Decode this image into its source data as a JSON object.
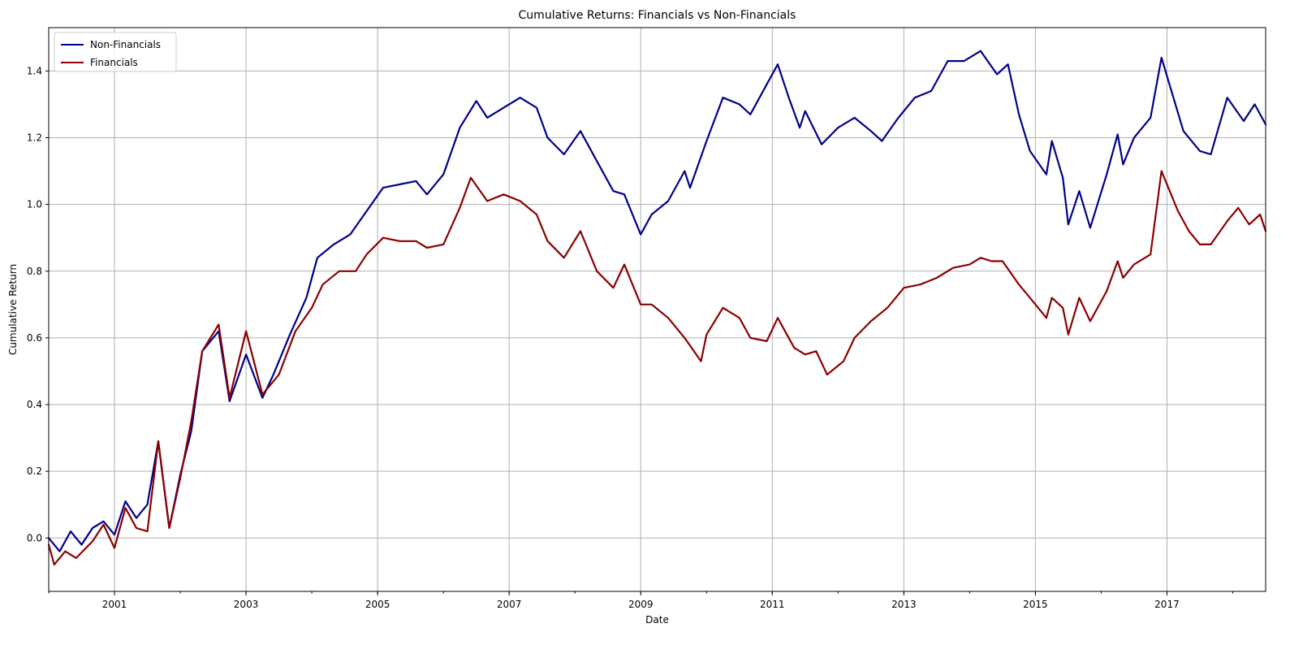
{
  "chart_data": {
    "type": "line",
    "title": "Cumulative Returns: Financials vs Non-Financials",
    "xlabel": "Date",
    "ylabel": "Cumulative Return",
    "xlim": [
      "2000-01-01",
      "2018-07-01"
    ],
    "ylim": [
      -0.16,
      1.53
    ],
    "x_ticks": [
      "2001",
      "2003",
      "2005",
      "2007",
      "2009",
      "2011",
      "2013",
      "2015",
      "2017"
    ],
    "y_ticks": [
      "0.0",
      "0.2",
      "0.4",
      "0.6",
      "0.8",
      "1.0",
      "1.2",
      "1.4"
    ],
    "grid": true,
    "legend_position": "upper-left",
    "series": [
      {
        "name": "Non-Financials",
        "color": "#00008b",
        "points": [
          [
            "2000-01",
            0.0
          ],
          [
            "2000-03",
            -0.04
          ],
          [
            "2000-05",
            0.02
          ],
          [
            "2000-07",
            -0.02
          ],
          [
            "2000-09",
            0.03
          ],
          [
            "2000-11",
            0.05
          ],
          [
            "2001-01",
            0.01
          ],
          [
            "2001-03",
            0.11
          ],
          [
            "2001-05",
            0.06
          ],
          [
            "2001-07",
            0.1
          ],
          [
            "2001-09",
            0.29
          ],
          [
            "2001-11",
            0.03
          ],
          [
            "2002-01",
            0.19
          ],
          [
            "2002-03",
            0.32
          ],
          [
            "2002-05",
            0.56
          ],
          [
            "2002-08",
            0.62
          ],
          [
            "2002-10",
            0.41
          ],
          [
            "2003-01",
            0.55
          ],
          [
            "2003-04",
            0.42
          ],
          [
            "2003-06",
            0.49
          ],
          [
            "2003-09",
            0.61
          ],
          [
            "2003-12",
            0.72
          ],
          [
            "2004-02",
            0.84
          ],
          [
            "2004-05",
            0.88
          ],
          [
            "2004-08",
            0.91
          ],
          [
            "2004-11",
            0.98
          ],
          [
            "2005-02",
            1.05
          ],
          [
            "2005-05",
            1.06
          ],
          [
            "2005-08",
            1.07
          ],
          [
            "2005-10",
            1.03
          ],
          [
            "2006-01",
            1.09
          ],
          [
            "2006-04",
            1.23
          ],
          [
            "2006-07",
            1.31
          ],
          [
            "2006-09",
            1.26
          ],
          [
            "2006-12",
            1.29
          ],
          [
            "2007-03",
            1.32
          ],
          [
            "2007-06",
            1.29
          ],
          [
            "2007-08",
            1.2
          ],
          [
            "2007-11",
            1.15
          ],
          [
            "2008-02",
            1.22
          ],
          [
            "2008-05",
            1.13
          ],
          [
            "2008-08",
            1.04
          ],
          [
            "2008-10",
            1.03
          ],
          [
            "2009-01",
            0.91
          ],
          [
            "2009-03",
            0.97
          ],
          [
            "2009-06",
            1.01
          ],
          [
            "2009-09",
            1.1
          ],
          [
            "2009-10",
            1.05
          ],
          [
            "2010-01",
            1.19
          ],
          [
            "2010-04",
            1.32
          ],
          [
            "2010-07",
            1.3
          ],
          [
            "2010-09",
            1.27
          ],
          [
            "2010-12",
            1.36
          ],
          [
            "2011-02",
            1.42
          ],
          [
            "2011-04",
            1.32
          ],
          [
            "2011-06",
            1.23
          ],
          [
            "2011-07",
            1.28
          ],
          [
            "2011-10",
            1.18
          ],
          [
            "2012-01",
            1.23
          ],
          [
            "2012-04",
            1.26
          ],
          [
            "2012-07",
            1.22
          ],
          [
            "2012-09",
            1.19
          ],
          [
            "2012-12",
            1.26
          ],
          [
            "2013-03",
            1.32
          ],
          [
            "2013-06",
            1.34
          ],
          [
            "2013-09",
            1.43
          ],
          [
            "2013-12",
            1.43
          ],
          [
            "2014-03",
            1.46
          ],
          [
            "2014-06",
            1.39
          ],
          [
            "2014-08",
            1.42
          ],
          [
            "2014-10",
            1.27
          ],
          [
            "2014-12",
            1.16
          ],
          [
            "2015-03",
            1.09
          ],
          [
            "2015-04",
            1.19
          ],
          [
            "2015-06",
            1.08
          ],
          [
            "2015-07",
            0.94
          ],
          [
            "2015-09",
            1.04
          ],
          [
            "2015-11",
            0.93
          ],
          [
            "2016-02",
            1.09
          ],
          [
            "2016-04",
            1.21
          ],
          [
            "2016-05",
            1.12
          ],
          [
            "2016-07",
            1.2
          ],
          [
            "2016-10",
            1.26
          ],
          [
            "2016-12",
            1.44
          ],
          [
            "2017-02",
            1.33
          ],
          [
            "2017-04",
            1.22
          ],
          [
            "2017-07",
            1.16
          ],
          [
            "2017-09",
            1.15
          ],
          [
            "2017-12",
            1.32
          ],
          [
            "2018-03",
            1.25
          ],
          [
            "2018-05",
            1.3
          ],
          [
            "2018-07",
            1.24
          ]
        ]
      },
      {
        "name": "Financials",
        "color": "#8b0000",
        "points": [
          [
            "2000-01",
            -0.02
          ],
          [
            "2000-02",
            -0.08
          ],
          [
            "2000-04",
            -0.04
          ],
          [
            "2000-06",
            -0.06
          ],
          [
            "2000-09",
            -0.01
          ],
          [
            "2000-11",
            0.04
          ],
          [
            "2001-01",
            -0.03
          ],
          [
            "2001-03",
            0.09
          ],
          [
            "2001-05",
            0.03
          ],
          [
            "2001-07",
            0.02
          ],
          [
            "2001-09",
            0.29
          ],
          [
            "2001-11",
            0.03
          ],
          [
            "2002-01",
            0.18
          ],
          [
            "2002-03",
            0.35
          ],
          [
            "2002-05",
            0.56
          ],
          [
            "2002-08",
            0.64
          ],
          [
            "2002-10",
            0.42
          ],
          [
            "2003-01",
            0.62
          ],
          [
            "2003-04",
            0.43
          ],
          [
            "2003-07",
            0.49
          ],
          [
            "2003-10",
            0.62
          ],
          [
            "2004-01",
            0.69
          ],
          [
            "2004-03",
            0.76
          ],
          [
            "2004-06",
            0.8
          ],
          [
            "2004-09",
            0.8
          ],
          [
            "2004-11",
            0.85
          ],
          [
            "2005-02",
            0.9
          ],
          [
            "2005-05",
            0.89
          ],
          [
            "2005-08",
            0.89
          ],
          [
            "2005-10",
            0.87
          ],
          [
            "2006-01",
            0.88
          ],
          [
            "2006-04",
            0.99
          ],
          [
            "2006-06",
            1.08
          ],
          [
            "2006-09",
            1.01
          ],
          [
            "2006-12",
            1.03
          ],
          [
            "2007-03",
            1.01
          ],
          [
            "2007-06",
            0.97
          ],
          [
            "2007-08",
            0.89
          ],
          [
            "2007-11",
            0.84
          ],
          [
            "2008-02",
            0.92
          ],
          [
            "2008-05",
            0.8
          ],
          [
            "2008-08",
            0.75
          ],
          [
            "2008-10",
            0.82
          ],
          [
            "2009-01",
            0.7
          ],
          [
            "2009-03",
            0.7
          ],
          [
            "2009-06",
            0.66
          ],
          [
            "2009-09",
            0.6
          ],
          [
            "2009-12",
            0.53
          ],
          [
            "2010-01",
            0.61
          ],
          [
            "2010-04",
            0.69
          ],
          [
            "2010-07",
            0.66
          ],
          [
            "2010-09",
            0.6
          ],
          [
            "2010-12",
            0.59
          ],
          [
            "2011-02",
            0.66
          ],
          [
            "2011-05",
            0.57
          ],
          [
            "2011-07",
            0.55
          ],
          [
            "2011-09",
            0.56
          ],
          [
            "2011-11",
            0.49
          ],
          [
            "2012-02",
            0.53
          ],
          [
            "2012-04",
            0.6
          ],
          [
            "2012-07",
            0.65
          ],
          [
            "2012-10",
            0.69
          ],
          [
            "2013-01",
            0.75
          ],
          [
            "2013-04",
            0.76
          ],
          [
            "2013-07",
            0.78
          ],
          [
            "2013-10",
            0.81
          ],
          [
            "2014-01",
            0.82
          ],
          [
            "2014-03",
            0.84
          ],
          [
            "2014-05",
            0.83
          ],
          [
            "2014-07",
            0.83
          ],
          [
            "2014-10",
            0.76
          ],
          [
            "2014-12",
            0.72
          ],
          [
            "2015-03",
            0.66
          ],
          [
            "2015-04",
            0.72
          ],
          [
            "2015-06",
            0.69
          ],
          [
            "2015-07",
            0.61
          ],
          [
            "2015-09",
            0.72
          ],
          [
            "2015-11",
            0.65
          ],
          [
            "2016-02",
            0.74
          ],
          [
            "2016-04",
            0.83
          ],
          [
            "2016-05",
            0.78
          ],
          [
            "2016-07",
            0.82
          ],
          [
            "2016-10",
            0.85
          ],
          [
            "2016-12",
            1.1
          ],
          [
            "2017-03",
            0.98
          ],
          [
            "2017-05",
            0.92
          ],
          [
            "2017-07",
            0.88
          ],
          [
            "2017-09",
            0.88
          ],
          [
            "2017-12",
            0.95
          ],
          [
            "2018-02",
            0.99
          ],
          [
            "2018-04",
            0.94
          ],
          [
            "2018-06",
            0.97
          ],
          [
            "2018-07",
            0.92
          ]
        ]
      }
    ]
  }
}
